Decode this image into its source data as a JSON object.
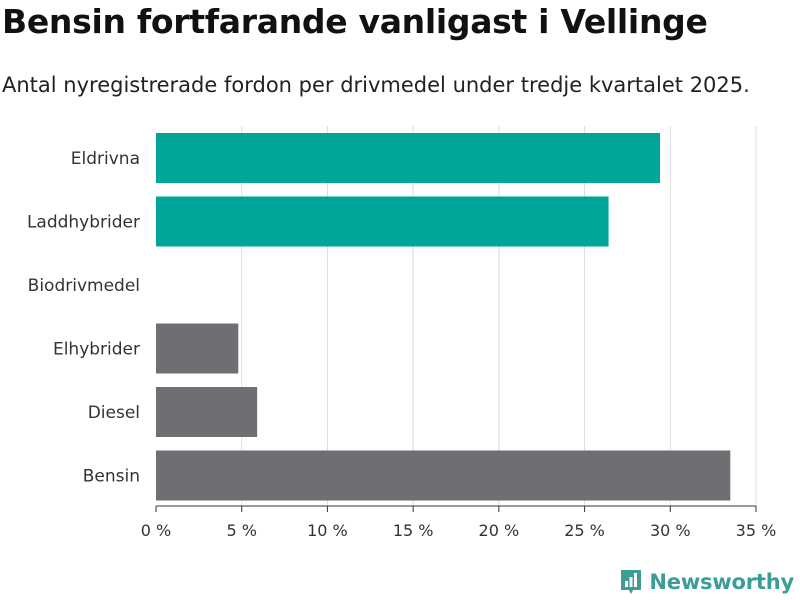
{
  "chart_data": {
    "type": "bar",
    "orientation": "horizontal",
    "title": "Bensin fortfarande vanligast i Vellinge",
    "subtitle": "Antal nyregistrerade fordon per drivmedel under tredje kvartalet 2025.",
    "categories": [
      "Eldrivna",
      "Laddhybrider",
      "Biodrivmedel",
      "Elhybrider",
      "Diesel",
      "Bensin"
    ],
    "values": [
      29.4,
      26.4,
      0,
      4.8,
      5.9,
      33.5
    ],
    "colors": [
      "#00a599",
      "#00a599",
      "#00a599",
      "#6e6e73",
      "#6e6e73",
      "#6e6e73"
    ],
    "xlim": [
      0,
      35
    ],
    "xticks": [
      0,
      5,
      10,
      15,
      20,
      25,
      30,
      35
    ],
    "xtick_labels": [
      "0 %",
      "5 %",
      "10 %",
      "15 %",
      "20 %",
      "25 %",
      "30 %",
      "35 %"
    ],
    "grid": true
  },
  "brand": {
    "name": "Newsworthy",
    "color": "#3c9d97"
  }
}
